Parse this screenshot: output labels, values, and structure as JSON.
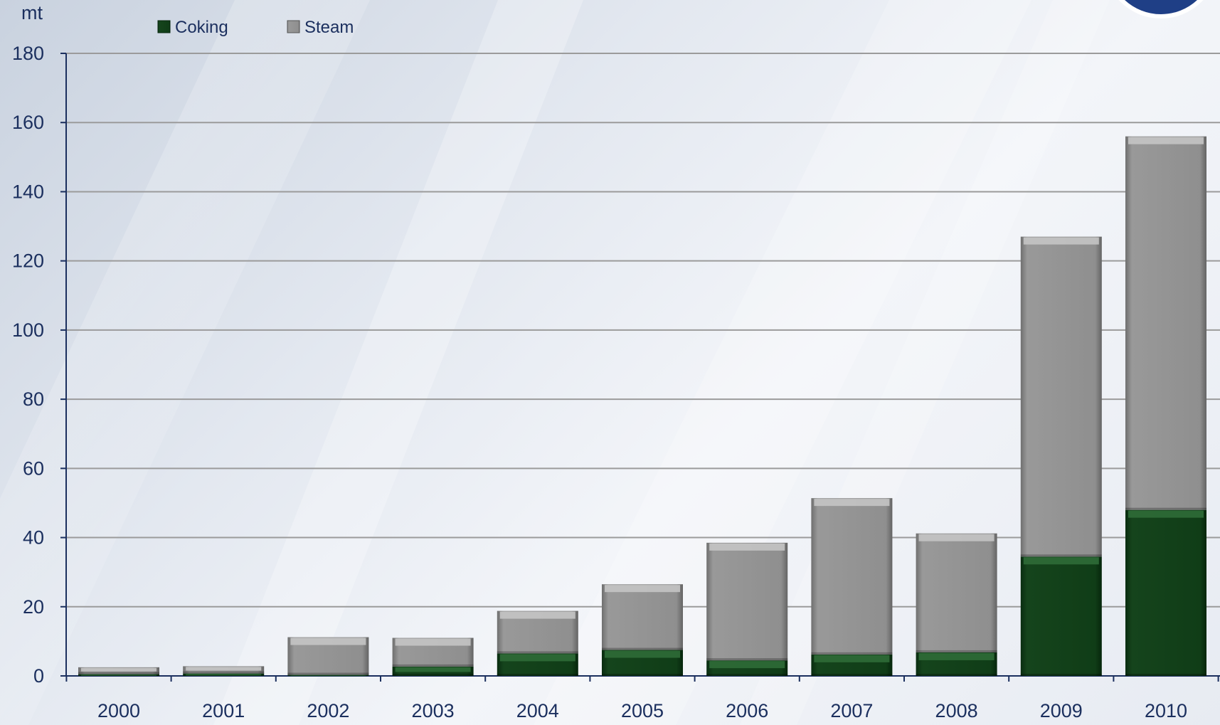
{
  "chart_data": {
    "type": "bar",
    "stacked": true,
    "unit_label": "mt",
    "categories": [
      "2000",
      "2001",
      "2002",
      "2003",
      "2004",
      "2005",
      "2006",
      "2007",
      "2008",
      "2009",
      "2010"
    ],
    "series": [
      {
        "name": "Coking",
        "color": "#0f3a16",
        "values": [
          0.5,
          0.7,
          0.3,
          2.7,
          6.5,
          7.5,
          4.5,
          6.2,
          6.8,
          34.5,
          48.0
        ]
      },
      {
        "name": "Steam",
        "color": "#8c8c8c",
        "values": [
          2.0,
          2.1,
          10.9,
          8.3,
          12.3,
          19.0,
          34.0,
          45.2,
          34.4,
          92.5,
          108.0
        ]
      }
    ],
    "ylim": [
      0,
      180
    ],
    "yticks": [
      0,
      20,
      40,
      60,
      80,
      100,
      120,
      140,
      160,
      180
    ],
    "grid": true,
    "legend_position": "top-left"
  }
}
